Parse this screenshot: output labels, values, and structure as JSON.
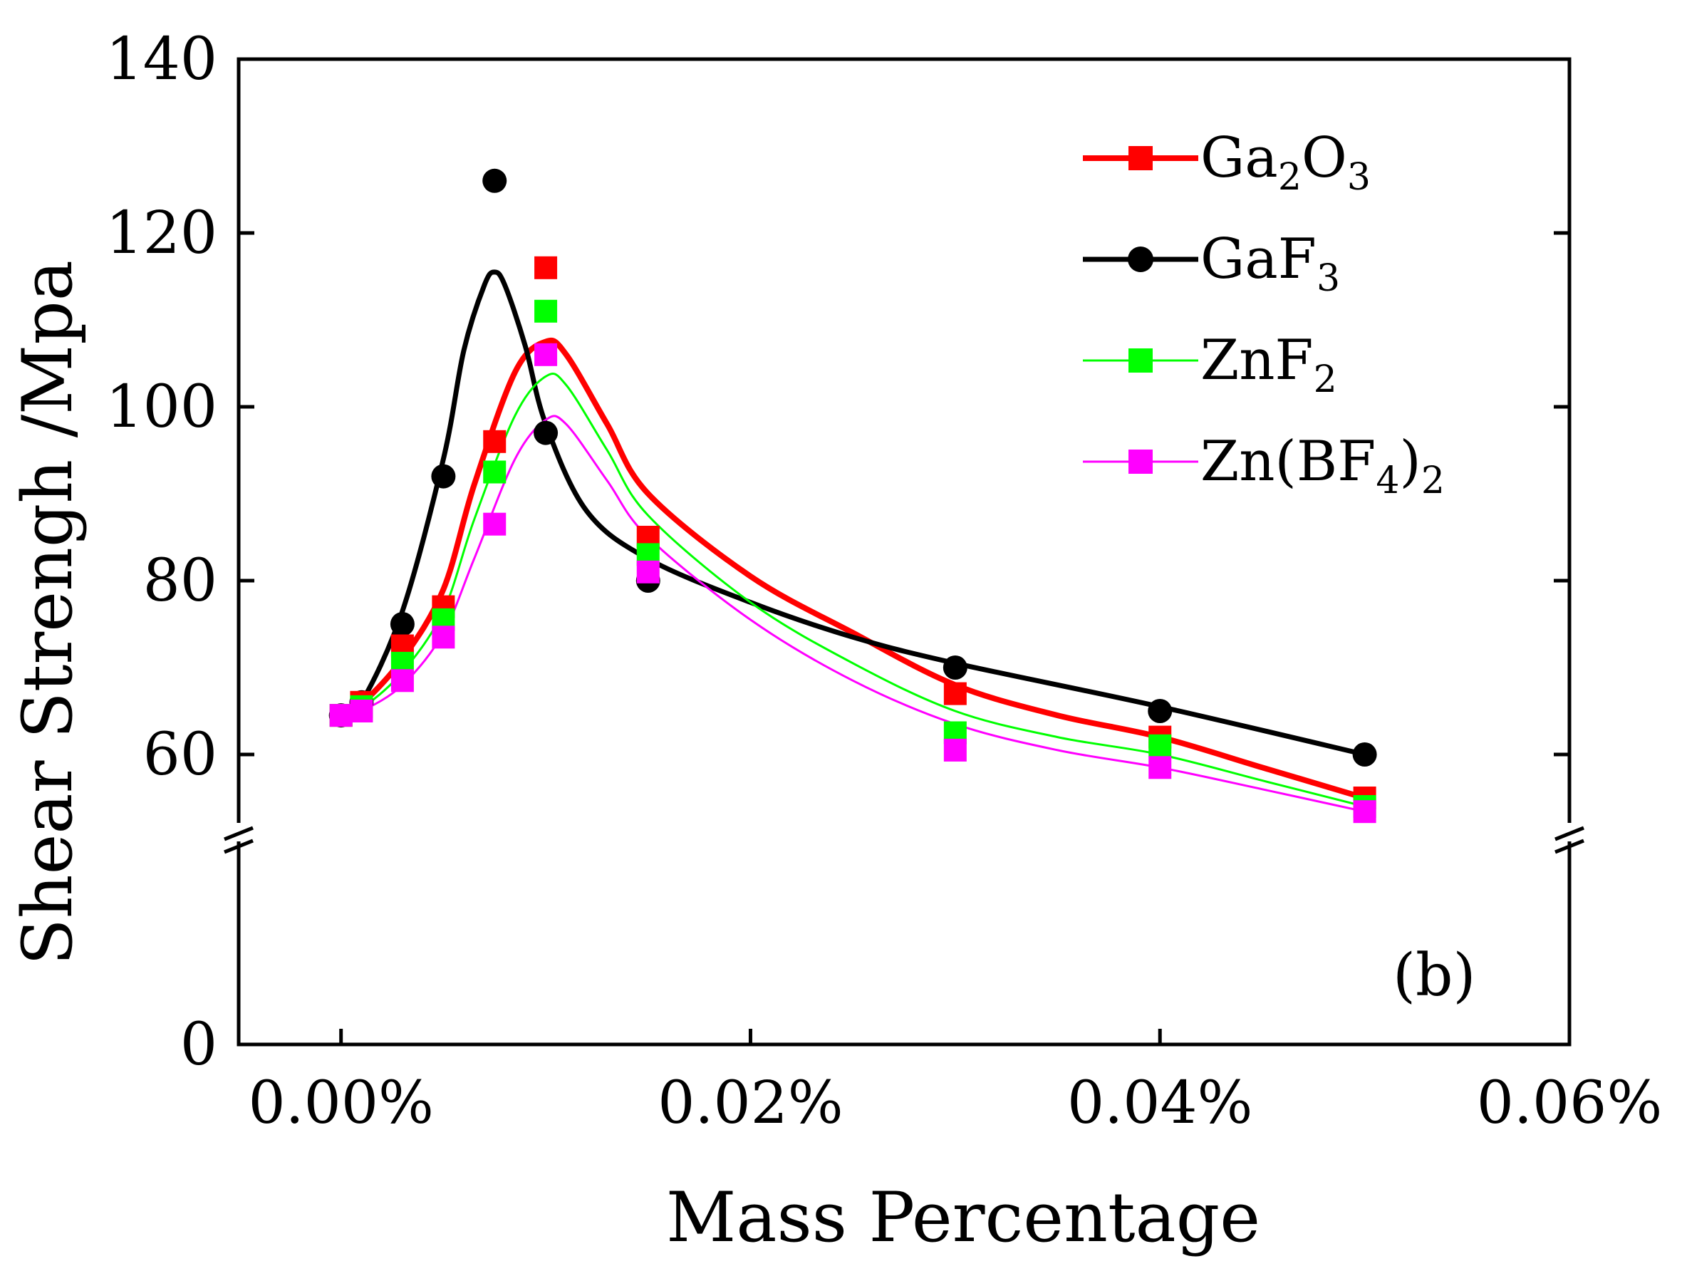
{
  "chart_data": {
    "type": "scatter",
    "title": "",
    "xlabel": "Mass Percentage",
    "ylabel": "Shear Strengh /Mpa",
    "panel_label": "(b)",
    "xlim": [
      -5e-05,
      0.0006
    ],
    "ylim": [
      0,
      140
    ],
    "y_axis_break": [
      45,
      55
    ],
    "x_ticks": [
      {
        "value": 0.0,
        "label": "0.00%"
      },
      {
        "value": 0.0002,
        "label": "0.02%"
      },
      {
        "value": 0.0004,
        "label": "0.04%"
      },
      {
        "value": 0.0006,
        "label": "0.06%"
      }
    ],
    "y_ticks": [
      {
        "value": 0,
        "label": "0"
      },
      {
        "value": 60,
        "label": "60"
      },
      {
        "value": 80,
        "label": "80"
      },
      {
        "value": 100,
        "label": "100"
      },
      {
        "value": 120,
        "label": "120"
      },
      {
        "value": 140,
        "label": "140"
      }
    ],
    "grid": false,
    "legend_position": "top-right",
    "series": [
      {
        "name": "Ga2O3",
        "legend_main1": "Ga",
        "legend_sub1": "2",
        "legend_main2": "O",
        "legend_sub2": "3",
        "legend_main3": "",
        "legend_sub3": "",
        "color": "#ff0000",
        "marker": "square",
        "x": [
          0.0,
          1e-05,
          3e-05,
          5e-05,
          7.5e-05,
          0.0001,
          0.00015,
          0.0003,
          0.0004,
          0.0005
        ],
        "values": [
          64.5,
          66,
          72.5,
          77,
          96,
          116,
          85,
          67,
          62,
          55
        ],
        "fit_x": [
          0.0,
          1e-05,
          3e-05,
          5e-05,
          6.5e-05,
          8.5e-05,
          0.0001,
          0.00011,
          0.00013,
          0.00015,
          0.0002,
          0.00025,
          0.0003,
          0.00035,
          0.0004,
          0.00045,
          0.0005
        ],
        "fit_y": [
          64.5,
          65.8,
          71,
          79,
          91,
          104,
          107.5,
          106,
          98,
          90,
          80.5,
          74,
          68,
          64.5,
          62,
          58.5,
          55
        ]
      },
      {
        "name": "GaF3",
        "legend_main1": "GaF",
        "legend_sub1": "3",
        "legend_main2": "",
        "legend_sub2": "",
        "legend_main3": "",
        "legend_sub3": "",
        "color": "#000000",
        "marker": "circle",
        "x": [
          0.0,
          1e-05,
          3e-05,
          5e-05,
          7.5e-05,
          0.0001,
          0.00015,
          0.0003,
          0.0004,
          0.0005
        ],
        "values": [
          64.5,
          66,
          75,
          92,
          126,
          97,
          80,
          70,
          65,
          60
        ],
        "fit_x": [
          0.0,
          1e-05,
          3e-05,
          5e-05,
          6e-05,
          7e-05,
          7.5e-05,
          8e-05,
          9e-05,
          0.0001,
          0.00012,
          0.00015,
          0.0002,
          0.00025,
          0.0003,
          0.0004,
          0.0005
        ],
        "fit_y": [
          64.5,
          66,
          76.5,
          94,
          106.5,
          114,
          115.5,
          114,
          107,
          98,
          88,
          82.5,
          77.5,
          73.5,
          70.5,
          65.5,
          60
        ]
      },
      {
        "name": "ZnF2",
        "legend_main1": "ZnF",
        "legend_sub1": "2",
        "legend_main2": "",
        "legend_sub2": "",
        "legend_main3": "",
        "legend_sub3": "",
        "color": "#00ff00",
        "marker": "square",
        "x": [
          0.0,
          1e-05,
          3e-05,
          5e-05,
          7.5e-05,
          0.0001,
          0.00015,
          0.0003,
          0.0004,
          0.0005
        ],
        "values": [
          64.5,
          65.5,
          70.5,
          75.5,
          92.5,
          111,
          83,
          62.5,
          61,
          52.5
        ],
        "fit_x": [
          0.0,
          1e-05,
          3e-05,
          5e-05,
          6.5e-05,
          8.5e-05,
          0.0001,
          0.00011,
          0.00013,
          0.00015,
          0.0002,
          0.00025,
          0.0003,
          0.00035,
          0.0004,
          0.00045,
          0.0005
        ],
        "fit_y": [
          64.5,
          65.3,
          69.5,
          76.5,
          87,
          99,
          103.5,
          102.5,
          95,
          87.5,
          77.5,
          70.5,
          65,
          62,
          60,
          57,
          52.5
        ]
      },
      {
        "name": "Zn(BF4)2",
        "legend_main1": "Zn(BF",
        "legend_sub1": "4",
        "legend_main2": ")",
        "legend_sub2": "2",
        "legend_main3": "",
        "legend_sub3": "",
        "color": "#ff00ff",
        "marker": "square",
        "x": [
          0.0,
          1e-05,
          3e-05,
          5e-05,
          7.5e-05,
          0.0001,
          0.00015,
          0.0003,
          0.0004,
          0.0005
        ],
        "values": [
          64.5,
          65,
          68.5,
          73.5,
          86.5,
          106,
          81,
          60.5,
          58.5,
          51
        ],
        "fit_x": [
          0.0,
          1e-05,
          3e-05,
          5e-05,
          6.5e-05,
          8.5e-05,
          0.0001,
          0.00011,
          0.00013,
          0.00015,
          0.0002,
          0.00025,
          0.0003,
          0.00035,
          0.0004,
          0.00045,
          0.0005
        ],
        "fit_y": [
          64.5,
          65,
          68,
          74,
          82.5,
          94,
          98.5,
          98,
          91.5,
          85,
          75.5,
          68.5,
          63.5,
          60.5,
          58.5,
          56,
          51
        ]
      }
    ]
  }
}
